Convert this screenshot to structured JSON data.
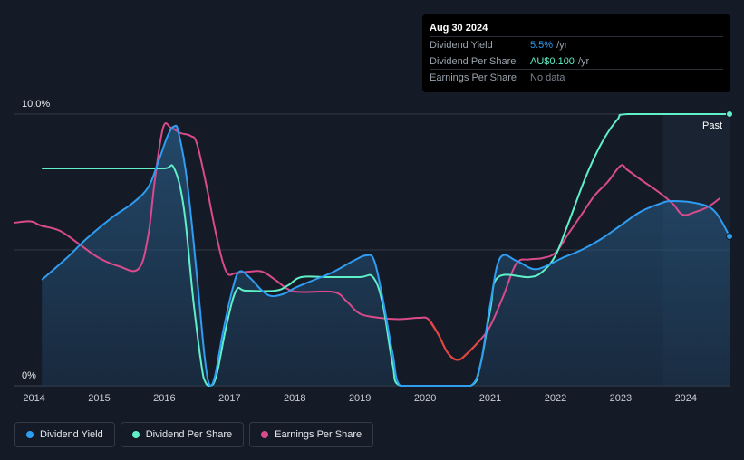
{
  "tooltip": {
    "date": "Aug 30 2024",
    "rows": [
      {
        "label": "Dividend Yield",
        "value": "5.5%",
        "unit": "/yr"
      },
      {
        "label": "Dividend Per Share",
        "value": "AU$0.100",
        "unit": "/yr"
      },
      {
        "label": "Earnings Per Share",
        "value": "No data",
        "unit": ""
      }
    ]
  },
  "legend": [
    {
      "label": "Dividend Yield",
      "color": "#2e9df2"
    },
    {
      "label": "Dividend Per Share",
      "color": "#5ff0c8"
    },
    {
      "label": "Earnings Per Share",
      "color": "#d94b8c"
    }
  ],
  "past_label": "Past",
  "chart_data": {
    "type": "line",
    "x_range": [
      2013.7,
      2024.67
    ],
    "y_axis": {
      "labels": [
        "10.0%",
        "0%"
      ],
      "range_pct": [
        0,
        10
      ]
    },
    "x_ticks": [
      "2014",
      "2015",
      "2016",
      "2017",
      "2018",
      "2019",
      "2020",
      "2021",
      "2022",
      "2023",
      "2024"
    ],
    "past_region_start": 2023.65,
    "grid": true,
    "series": [
      {
        "name": "Dividend Yield",
        "color": "#2e9df2",
        "unit": "%",
        "area": true,
        "points": [
          [
            2014.12,
            3.9
          ],
          [
            2014.5,
            4.7
          ],
          [
            2014.8,
            5.4
          ],
          [
            2015.2,
            6.2
          ],
          [
            2015.5,
            6.7
          ],
          [
            2015.75,
            7.3
          ],
          [
            2015.9,
            8.2
          ],
          [
            2016.05,
            9.2
          ],
          [
            2016.15,
            9.55
          ],
          [
            2016.22,
            9.3
          ],
          [
            2016.35,
            7.5
          ],
          [
            2016.5,
            4.0
          ],
          [
            2016.62,
            1.0
          ],
          [
            2016.7,
            0.0
          ],
          [
            2016.78,
            0.4
          ],
          [
            2016.9,
            2.0
          ],
          [
            2017.05,
            3.6
          ],
          [
            2017.15,
            4.2
          ],
          [
            2017.3,
            4.0
          ],
          [
            2017.5,
            3.5
          ],
          [
            2017.65,
            3.3
          ],
          [
            2017.85,
            3.4
          ],
          [
            2018.0,
            3.6
          ],
          [
            2018.3,
            3.9
          ],
          [
            2018.6,
            4.2
          ],
          [
            2018.9,
            4.6
          ],
          [
            2019.1,
            4.8
          ],
          [
            2019.22,
            4.6
          ],
          [
            2019.35,
            3.2
          ],
          [
            2019.5,
            1.2
          ],
          [
            2019.62,
            0.0
          ],
          [
            2020.0,
            0.0
          ],
          [
            2020.4,
            0.0
          ],
          [
            2020.7,
            0.0
          ],
          [
            2020.85,
            0.8
          ],
          [
            2021.0,
            3.0
          ],
          [
            2021.15,
            4.7
          ],
          [
            2021.4,
            4.6
          ],
          [
            2021.65,
            4.3
          ],
          [
            2021.85,
            4.4
          ],
          [
            2022.1,
            4.7
          ],
          [
            2022.4,
            5.0
          ],
          [
            2022.7,
            5.4
          ],
          [
            2023.0,
            5.9
          ],
          [
            2023.3,
            6.4
          ],
          [
            2023.6,
            6.7
          ],
          [
            2023.8,
            6.8
          ],
          [
            2024.2,
            6.7
          ],
          [
            2024.45,
            6.4
          ],
          [
            2024.67,
            5.5
          ]
        ]
      },
      {
        "name": "Dividend Per Share",
        "color": "#5ff0c8",
        "unit": "%",
        "points": [
          [
            2014.12,
            8.0
          ],
          [
            2015.5,
            8.0
          ],
          [
            2016.0,
            8.0
          ],
          [
            2016.15,
            8.0
          ],
          [
            2016.3,
            6.5
          ],
          [
            2016.45,
            3.0
          ],
          [
            2016.6,
            0.3
          ],
          [
            2016.7,
            0.0
          ],
          [
            2016.8,
            0.4
          ],
          [
            2016.95,
            2.2
          ],
          [
            2017.1,
            3.5
          ],
          [
            2017.25,
            3.5
          ],
          [
            2017.7,
            3.5
          ],
          [
            2017.9,
            3.7
          ],
          [
            2018.1,
            4.0
          ],
          [
            2018.5,
            4.0
          ],
          [
            2019.0,
            4.0
          ],
          [
            2019.2,
            4.0
          ],
          [
            2019.35,
            3.0
          ],
          [
            2019.5,
            0.8
          ],
          [
            2019.62,
            0.0
          ],
          [
            2020.2,
            0.0
          ],
          [
            2020.7,
            0.0
          ],
          [
            2020.85,
            0.8
          ],
          [
            2021.0,
            2.8
          ],
          [
            2021.12,
            4.0
          ],
          [
            2021.6,
            4.0
          ],
          [
            2021.8,
            4.2
          ],
          [
            2022.0,
            4.8
          ],
          [
            2022.2,
            6.0
          ],
          [
            2022.45,
            7.6
          ],
          [
            2022.7,
            8.9
          ],
          [
            2022.95,
            9.8
          ],
          [
            2023.1,
            10.0
          ],
          [
            2024.0,
            10.0
          ],
          [
            2024.67,
            10.0
          ]
        ]
      },
      {
        "name": "Earnings Per Share",
        "color": "#d94b8c",
        "unit": "%",
        "points": [
          [
            2013.7,
            6.0
          ],
          [
            2013.95,
            6.05
          ],
          [
            2014.1,
            5.9
          ],
          [
            2014.4,
            5.7
          ],
          [
            2014.7,
            5.2
          ],
          [
            2015.0,
            4.7
          ],
          [
            2015.3,
            4.4
          ],
          [
            2015.6,
            4.3
          ],
          [
            2015.75,
            5.5
          ],
          [
            2015.85,
            7.5
          ],
          [
            2015.98,
            9.5
          ],
          [
            2016.1,
            9.5
          ],
          [
            2016.25,
            9.3
          ],
          [
            2016.4,
            9.2
          ],
          [
            2016.5,
            8.9
          ],
          [
            2016.65,
            7.3
          ],
          [
            2016.8,
            5.5
          ],
          [
            2016.95,
            4.2
          ],
          [
            2017.1,
            4.15
          ],
          [
            2017.3,
            4.2
          ],
          [
            2017.5,
            4.2
          ],
          [
            2017.7,
            3.9
          ],
          [
            2017.9,
            3.55
          ],
          [
            2018.1,
            3.45
          ],
          [
            2018.6,
            3.45
          ],
          [
            2018.8,
            3.1
          ],
          [
            2019.0,
            2.65
          ],
          [
            2019.3,
            2.5
          ],
          [
            2019.6,
            2.45
          ],
          [
            2019.9,
            2.5
          ],
          [
            2020.05,
            2.45
          ],
          [
            2020.2,
            1.9
          ],
          [
            2020.35,
            1.2
          ],
          [
            2020.5,
            0.95
          ],
          [
            2020.65,
            1.2
          ],
          [
            2020.85,
            1.7
          ],
          [
            2021.0,
            2.2
          ],
          [
            2021.2,
            3.3
          ],
          [
            2021.4,
            4.5
          ],
          [
            2021.6,
            4.65
          ],
          [
            2021.8,
            4.7
          ],
          [
            2022.0,
            4.9
          ],
          [
            2022.2,
            5.6
          ],
          [
            2022.4,
            6.3
          ],
          [
            2022.6,
            7.0
          ],
          [
            2022.8,
            7.5
          ],
          [
            2023.0,
            8.1
          ],
          [
            2023.1,
            7.95
          ],
          [
            2023.3,
            7.6
          ],
          [
            2023.6,
            7.1
          ],
          [
            2023.8,
            6.7
          ],
          [
            2023.95,
            6.3
          ],
          [
            2024.15,
            6.4
          ],
          [
            2024.35,
            6.6
          ],
          [
            2024.52,
            6.9
          ]
        ]
      }
    ]
  }
}
